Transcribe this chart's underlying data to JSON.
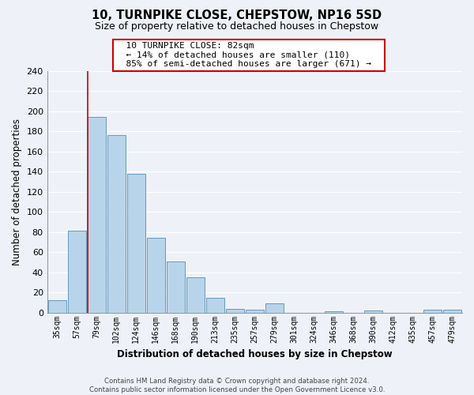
{
  "title": "10, TURNPIKE CLOSE, CHEPSTOW, NP16 5SD",
  "subtitle": "Size of property relative to detached houses in Chepstow",
  "xlabel": "Distribution of detached houses by size in Chepstow",
  "ylabel": "Number of detached properties",
  "bar_color": "#b8d4ea",
  "bar_edge_color": "#6699bb",
  "bin_labels": [
    "35sqm",
    "57sqm",
    "79sqm",
    "102sqm",
    "124sqm",
    "146sqm",
    "168sqm",
    "190sqm",
    "213sqm",
    "235sqm",
    "257sqm",
    "279sqm",
    "301sqm",
    "324sqm",
    "346sqm",
    "368sqm",
    "390sqm",
    "412sqm",
    "435sqm",
    "457sqm",
    "479sqm"
  ],
  "bar_heights": [
    12,
    81,
    194,
    176,
    138,
    74,
    51,
    35,
    15,
    4,
    3,
    9,
    0,
    0,
    1,
    0,
    2,
    0,
    0,
    3,
    3
  ],
  "ylim": [
    0,
    240
  ],
  "yticks": [
    0,
    20,
    40,
    60,
    80,
    100,
    120,
    140,
    160,
    180,
    200,
    220,
    240
  ],
  "marker_bin_index": 2,
  "annotation_title": "10 TURNPIKE CLOSE: 82sqm",
  "annotation_line1": "← 14% of detached houses are smaller (110)",
  "annotation_line2": "85% of semi-detached houses are larger (671) →",
  "annotation_box_color": "#ffffff",
  "annotation_box_edge": "#cc0000",
  "marker_line_color": "#cc0000",
  "footer_line1": "Contains HM Land Registry data © Crown copyright and database right 2024.",
  "footer_line2": "Contains public sector information licensed under the Open Government Licence v3.0.",
  "background_color": "#eef2f8",
  "grid_color": "#ffffff",
  "fig_width": 6.0,
  "fig_height": 5.0
}
